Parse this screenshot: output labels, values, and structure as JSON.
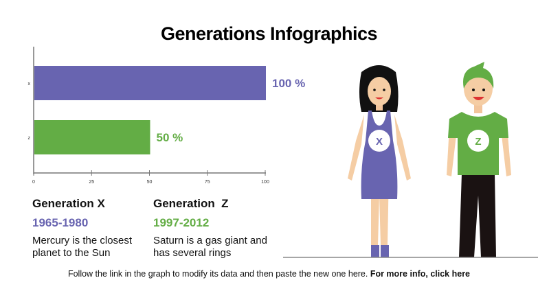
{
  "title": "Generations Infographics",
  "colors": {
    "x": "#6864b0",
    "z": "#63ad45",
    "axis": "#777777"
  },
  "chart_data": {
    "type": "bar",
    "orientation": "horizontal",
    "categories": [
      "X",
      "Z"
    ],
    "values": [
      100,
      50
    ],
    "data_labels": [
      "100 %",
      "50 %"
    ],
    "xlim": [
      0,
      100
    ],
    "xticks": [
      "0",
      "25",
      "50",
      "75",
      "100"
    ],
    "grid": false
  },
  "generations": [
    {
      "name": "Generation X",
      "years": "1965-1980",
      "description": "Mercury is the closest planet to the Sun",
      "badge": "X"
    },
    {
      "name": "Generation  Z",
      "years": "1997-2012",
      "description": "Saturn is a gas giant and has several rings",
      "badge": "Z"
    }
  ],
  "footer": {
    "text": "Follow the link in the graph to modify its data and then paste the new one here. ",
    "link": "For more info, click here"
  }
}
